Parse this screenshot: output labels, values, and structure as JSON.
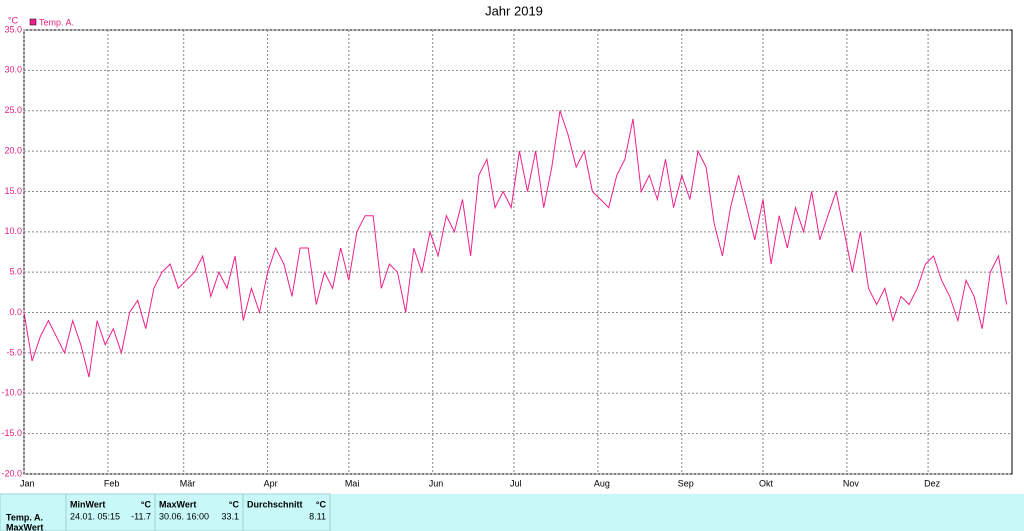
{
  "chart_data": {
    "type": "line",
    "title": "Jahr 2019",
    "y_unit": "°C",
    "x": [
      0,
      3,
      6,
      9,
      12,
      15,
      18,
      21,
      24,
      27,
      30,
      33,
      36,
      39,
      42,
      45,
      48,
      51,
      54,
      57,
      60,
      63,
      66,
      69,
      72,
      75,
      78,
      81,
      84,
      87,
      90,
      93,
      96,
      99,
      102,
      105,
      108,
      111,
      114,
      117,
      120,
      123,
      126,
      129,
      132,
      135,
      138,
      141,
      144,
      147,
      150,
      153,
      156,
      159,
      162,
      165,
      168,
      171,
      174,
      177,
      180,
      183,
      186,
      189,
      192,
      195,
      198,
      201,
      204,
      207,
      210,
      213,
      216,
      219,
      222,
      225,
      228,
      231,
      234,
      237,
      240,
      243,
      246,
      249,
      252,
      255,
      258,
      261,
      264,
      267,
      270,
      273,
      276,
      279,
      282,
      285,
      288,
      291,
      294,
      297,
      300,
      303,
      306,
      309,
      312,
      315,
      318,
      321,
      324,
      327,
      330,
      333,
      336,
      339,
      342,
      345,
      348,
      351,
      354,
      357,
      360,
      363
    ],
    "series": [
      {
        "name": "Temp. A.",
        "color": "#f0208c",
        "values": [
          0,
          -6,
          -3,
          -1,
          -3,
          -5,
          -1,
          -4,
          -8,
          -1,
          -4,
          -2,
          -5,
          0,
          1.5,
          -2,
          3,
          5,
          6,
          3,
          4,
          5,
          7,
          2,
          5,
          3,
          7,
          -1,
          3,
          0,
          5,
          8,
          6,
          2,
          8,
          8,
          1,
          5,
          3,
          8,
          4,
          10,
          12,
          12,
          3,
          6,
          5,
          0,
          8,
          5,
          10,
          7,
          12,
          10,
          14,
          7,
          17,
          19,
          13,
          15,
          13,
          20,
          15,
          20,
          13,
          18,
          25,
          22,
          18,
          20,
          15,
          14,
          13,
          17,
          19,
          24,
          15,
          17,
          14,
          19,
          13,
          17,
          14,
          20,
          18,
          11,
          7,
          13,
          17,
          13,
          9,
          14,
          6,
          12,
          8,
          13,
          10,
          15,
          9,
          12,
          15,
          10,
          5,
          10,
          3,
          1,
          3,
          -1,
          2,
          1,
          3,
          6,
          7,
          4,
          2,
          -1,
          4,
          2,
          -2,
          5,
          7,
          1
        ]
      }
    ],
    "xlim": [
      0,
      365
    ],
    "xticks": [
      {
        "value": 0,
        "label": "Jan"
      },
      {
        "value": 31,
        "label": "Feb"
      },
      {
        "value": 59,
        "label": "Mär"
      },
      {
        "value": 90,
        "label": "Apr"
      },
      {
        "value": 120,
        "label": "Mai"
      },
      {
        "value": 151,
        "label": "Jun"
      },
      {
        "value": 181,
        "label": "Jul"
      },
      {
        "value": 212,
        "label": "Aug"
      },
      {
        "value": 243,
        "label": "Sep"
      },
      {
        "value": 273,
        "label": "Okt"
      },
      {
        "value": 304,
        "label": "Nov"
      },
      {
        "value": 334,
        "label": "Dez"
      }
    ],
    "ylim": [
      -20,
      35
    ],
    "yticks": [
      {
        "value": -20,
        "label": "-20.0"
      },
      {
        "value": -15,
        "label": "-15.0"
      },
      {
        "value": -10,
        "label": "-10.0"
      },
      {
        "value": -5,
        "label": "-5.0"
      },
      {
        "value": 0,
        "label": "0.0"
      },
      {
        "value": 5,
        "label": "5.0"
      },
      {
        "value": 10,
        "label": "10.0"
      },
      {
        "value": 15,
        "label": "15.0"
      },
      {
        "value": 20,
        "label": "20.0"
      },
      {
        "value": 25,
        "label": "25.0"
      },
      {
        "value": 30,
        "label": "30.0"
      },
      {
        "value": 35,
        "label": "35.0"
      }
    ],
    "grid": true,
    "legend": "top-left"
  },
  "stats_table": {
    "row_labels": [
      "Temp. A.",
      "MaxWert"
    ],
    "columns": [
      {
        "title": "MinWert",
        "unit": "°C",
        "time": "24.01. 05:15",
        "value": "-11.7"
      },
      {
        "title": "MaxWert",
        "unit": "°C",
        "time": "30.06. 16:00",
        "value": "33.1"
      },
      {
        "title": "Durchschnitt",
        "unit": "°C",
        "time": "",
        "value": "8.11"
      }
    ]
  }
}
